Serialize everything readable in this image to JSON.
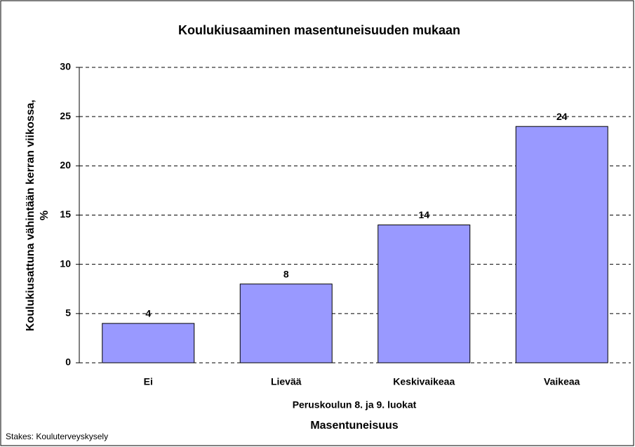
{
  "chart_data": {
    "type": "bar",
    "title": "Koulukiusaaminen masentuneisuuden mukaan",
    "y_label": [
      "Koulukiusattuna vähintään kerran viikossa,",
      "%"
    ],
    "subtitle": "Peruskoulun 8. ja 9. luokat",
    "x_label": "Masentuneisuus",
    "source": "Stakes: Kouluterveyskysely",
    "categories": [
      "Ei",
      "Lievää",
      "Keskivaikeaa",
      "Vaikeaa"
    ],
    "values": [
      4,
      8,
      14,
      24
    ],
    "color": "#9999ff",
    "ylim": [
      0,
      30
    ],
    "yticks": [
      0,
      5,
      10,
      15,
      20,
      25,
      30
    ],
    "grid": true
  }
}
